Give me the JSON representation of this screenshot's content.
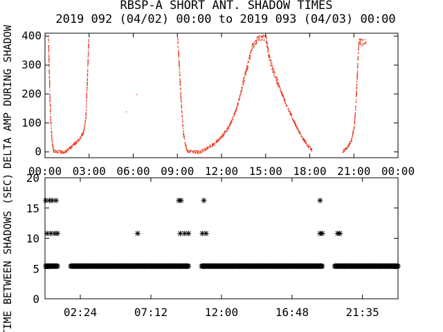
{
  "title_line1": "RBSP-A SHORT ANT. SHADOW TIMES",
  "title_line2": "2019 092 (04/02) 00:00 to 2019 093 (04/03) 00:00",
  "colors": {
    "amplitude_points": "#e8391f",
    "interval_markers": "#000000",
    "axes": "#000000",
    "background": "#ffffff"
  },
  "chart_data": [
    {
      "type": "scatter",
      "ylabel": "DELTA AMP DURING SHADOW",
      "xlim": [
        0,
        24
      ],
      "ylim": [
        -20,
        410
      ],
      "x_tick_labels": [
        "00:00",
        "03:00",
        "06:00",
        "09:00",
        "12:00",
        "15:00",
        "18:00",
        "21:00",
        "00:00"
      ],
      "x_tick_values": [
        0,
        3,
        6,
        9,
        12,
        15,
        18,
        21,
        24
      ],
      "y_tick_values": [
        0,
        100,
        200,
        300,
        400
      ],
      "y_tick_labels": [
        "0",
        "100",
        "200",
        "300",
        "400"
      ],
      "series": [
        {
          "color": "#e8391f",
          "description_points": [
            [
              0.2,
              400
            ],
            [
              0.25,
              300
            ],
            [
              0.3,
              200
            ],
            [
              0.35,
              120
            ],
            [
              0.45,
              40
            ],
            [
              0.55,
              5
            ],
            [
              1.3,
              0
            ],
            [
              1.8,
              20
            ],
            [
              2.3,
              45
            ],
            [
              2.6,
              70
            ],
            [
              2.75,
              120
            ],
            [
              2.85,
              250
            ],
            [
              2.95,
              390
            ],
            [
              6.2,
              200
            ],
            [
              5.5,
              140
            ],
            [
              9.0,
              390
            ],
            [
              9.1,
              300
            ],
            [
              9.2,
              200
            ],
            [
              9.3,
              120
            ],
            [
              9.4,
              60
            ],
            [
              9.55,
              20
            ],
            [
              9.65,
              5
            ],
            [
              10.5,
              0
            ],
            [
              11.0,
              15
            ],
            [
              11.5,
              30
            ],
            [
              12.0,
              55
            ],
            [
              12.5,
              90
            ],
            [
              13.0,
              150
            ],
            [
              13.3,
              210
            ],
            [
              13.6,
              270
            ],
            [
              13.9,
              330
            ],
            [
              14.1,
              370
            ],
            [
              14.4,
              390
            ],
            [
              14.7,
              400
            ],
            [
              15.0,
              395
            ],
            [
              15.2,
              330
            ],
            [
              15.5,
              280
            ],
            [
              15.8,
              240
            ],
            [
              16.1,
              200
            ],
            [
              16.4,
              160
            ],
            [
              16.7,
              130
            ],
            [
              17.0,
              95
            ],
            [
              17.3,
              65
            ],
            [
              17.6,
              40
            ],
            [
              17.9,
              20
            ],
            [
              18.1,
              8
            ],
            [
              20.2,
              0
            ],
            [
              20.5,
              15
            ],
            [
              20.8,
              40
            ],
            [
              21.0,
              90
            ],
            [
              21.1,
              160
            ],
            [
              21.2,
              260
            ],
            [
              21.3,
              380
            ],
            [
              21.8,
              380
            ]
          ]
        }
      ]
    },
    {
      "type": "scatter",
      "ylabel": "TIME BETWEEN SHADOWS (SEC)",
      "xlim": [
        0,
        24
      ],
      "ylim": [
        0,
        20
      ],
      "x_tick_labels": [
        "02:24",
        "07:12",
        "12:00",
        "16:48",
        "21:35"
      ],
      "x_tick_values": [
        2.4,
        7.2,
        12.0,
        16.8,
        21.583
      ],
      "y_tick_values": [
        0,
        5,
        10,
        15,
        20
      ],
      "y_tick_labels": [
        "0",
        "5",
        "10",
        "15",
        "20"
      ],
      "series": [
        {
          "color": "#000000",
          "marker": "asterisk",
          "high_points": [
            [
              0.05,
              16.25
            ],
            [
              0.3,
              16.25
            ],
            [
              0.5,
              16.25
            ],
            [
              0.75,
              16.25
            ],
            [
              9.1,
              16.25
            ],
            [
              9.25,
              16.25
            ],
            [
              10.8,
              16.25
            ],
            [
              18.7,
              16.25
            ]
          ],
          "mid_points": [
            [
              0.15,
              10.8
            ],
            [
              0.4,
              10.8
            ],
            [
              0.65,
              10.8
            ],
            [
              0.85,
              10.8
            ],
            [
              6.3,
              10.8
            ],
            [
              9.2,
              10.8
            ],
            [
              9.5,
              10.8
            ],
            [
              9.75,
              10.8
            ],
            [
              10.7,
              10.8
            ],
            [
              10.95,
              10.8
            ],
            [
              18.7,
              10.8
            ],
            [
              18.85,
              10.8
            ],
            [
              19.9,
              10.8
            ],
            [
              20.05,
              10.8
            ]
          ],
          "low_band_segments": [
            [
              0.05,
              0.85
            ],
            [
              1.75,
              9.75
            ],
            [
              10.65,
              18.85
            ],
            [
              19.7,
              24.0
            ]
          ],
          "low_band_value": 5.4
        }
      ]
    }
  ]
}
